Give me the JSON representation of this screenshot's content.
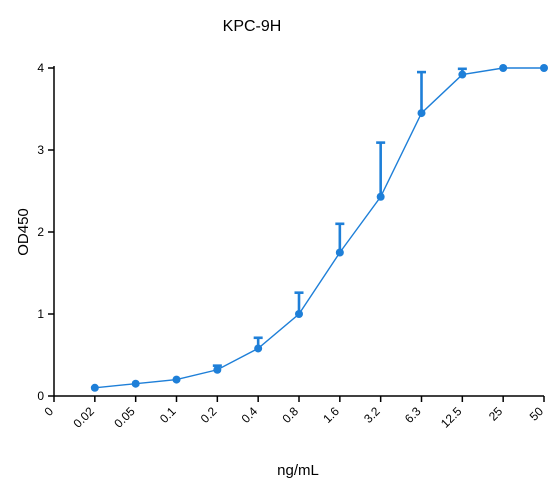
{
  "chart_data": {
    "type": "line",
    "title": "KPC-9H",
    "xlabel": "ng/mL",
    "ylabel": "OD450",
    "x_tick_labels": [
      "0",
      "0.02",
      "0.05",
      "0.1",
      "0.2",
      "0.4",
      "0.8",
      "1.6",
      "3.2",
      "6.3",
      "12.5",
      "25",
      "50"
    ],
    "y_ticks": [
      0,
      1,
      2,
      3,
      4
    ],
    "ylim": [
      0,
      4
    ],
    "grid": false,
    "color": "#1e7fd8",
    "series": [
      {
        "x": [
          "0.02",
          "0.05",
          "0.1",
          "0.2",
          "0.4",
          "0.8",
          "1.6",
          "3.2",
          "6.3",
          "12.5",
          "25",
          "50"
        ],
        "values": [
          0.1,
          0.15,
          0.2,
          0.32,
          0.58,
          1.0,
          1.75,
          2.43,
          3.45,
          3.92,
          4.0,
          4.0
        ],
        "error_upper": [
          0.1,
          0.15,
          0.2,
          0.37,
          0.71,
          1.26,
          2.1,
          3.09,
          3.95,
          3.99,
          4.0,
          4.0
        ]
      }
    ]
  }
}
